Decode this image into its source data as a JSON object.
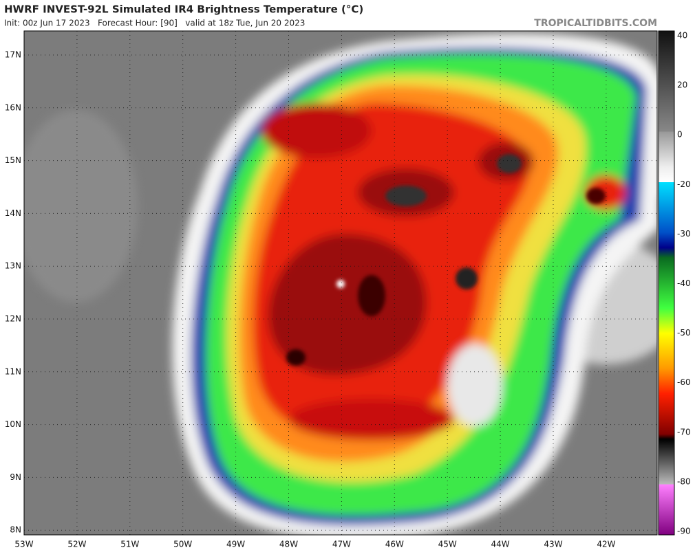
{
  "header": {
    "title": "HWRF INVEST-92L Simulated IR4 Brightness Temperature (°C)",
    "subtitle": "Init: 00z Jun 17 2023   Forecast Hour: [90]   valid at 18z Tue, Jun 20 2023",
    "credit": "TROPICALTIDBITS.COM"
  },
  "map": {
    "lat_labels": [
      "17N",
      "16N",
      "15N",
      "14N",
      "13N",
      "12N",
      "11N",
      "10N",
      "9N",
      "8N"
    ],
    "lon_labels": [
      "53W",
      "52W",
      "51W",
      "50W",
      "49W",
      "48W",
      "47W",
      "46W",
      "45W",
      "44W",
      "43W",
      "42W"
    ]
  },
  "colorbar": {
    "tick_labels": [
      "40",
      "20",
      "0",
      "-20",
      "-30",
      "-40",
      "-50",
      "-60",
      "-70",
      "-80",
      "-90"
    ]
  }
}
